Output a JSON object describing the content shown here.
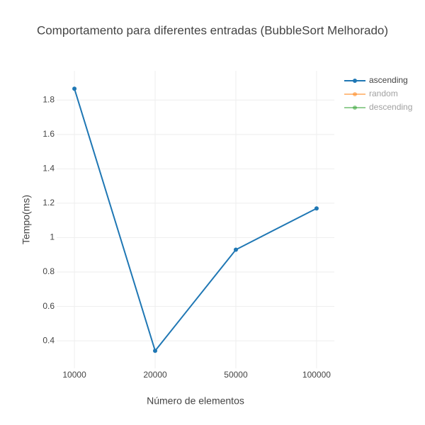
{
  "chart_data": {
    "type": "line",
    "title": "Comportamento para diferentes entradas (BubbleSort Melhorado)",
    "x_label": "Número de elementos",
    "y_label": "Tempo(ms)",
    "categories": [
      "10000",
      "20000",
      "50000",
      "100000"
    ],
    "series": [
      {
        "name": "ascending",
        "color": "#1f77b4",
        "visible": true,
        "values": [
          1.866,
          0.342,
          0.93,
          1.17
        ]
      },
      {
        "name": "random",
        "color": "#ff7f0e",
        "visible": false,
        "values": [
          null,
          null,
          null,
          null
        ]
      },
      {
        "name": "descending",
        "color": "#2ca02c",
        "visible": false,
        "values": [
          null,
          null,
          null,
          null
        ]
      }
    ],
    "ylim": [
      0.24,
      1.97
    ],
    "yticks": [
      0.4,
      0.6,
      0.8,
      1,
      1.2,
      1.4,
      1.6,
      1.8
    ],
    "grid": true,
    "legend": "right"
  }
}
